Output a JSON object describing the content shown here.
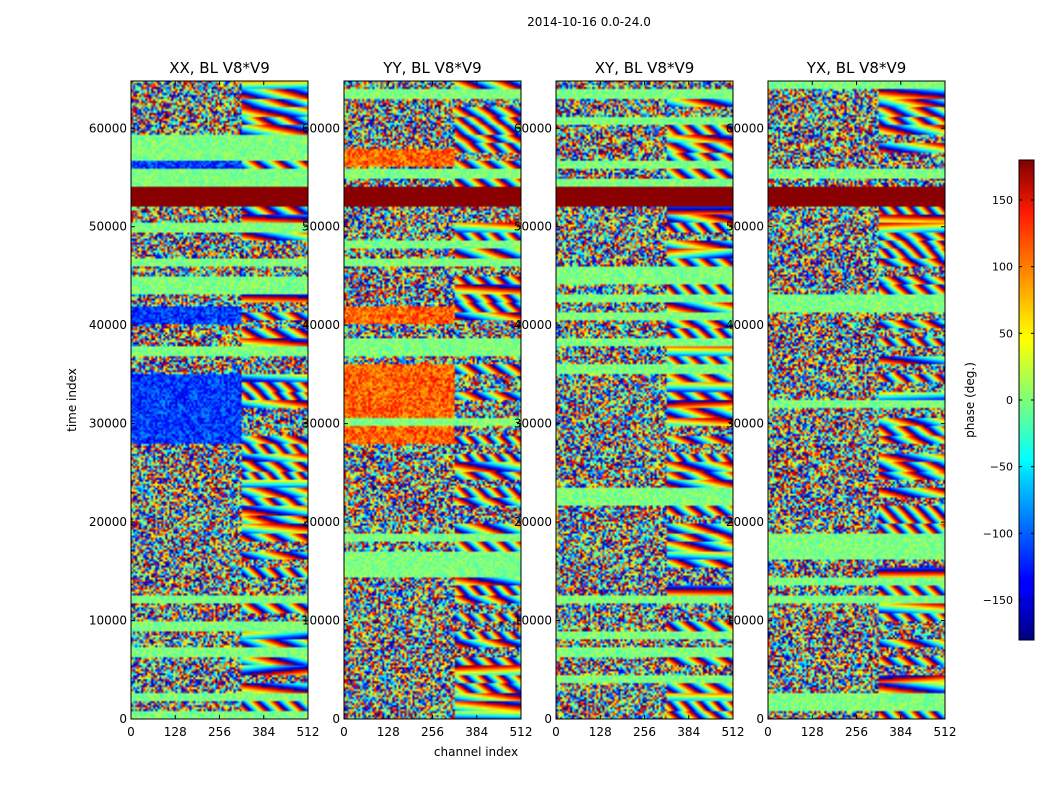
{
  "figure": {
    "suptitle": "2014-10-16 0.0-24.0",
    "xlabel": "channel index",
    "ylabel": "time index"
  },
  "colorbar": {
    "label": "phase (deg.)",
    "range": [
      -180,
      180
    ],
    "ticks": [
      150,
      100,
      50,
      0,
      -50,
      -100,
      -150
    ],
    "tick_labels": [
      "150",
      "100",
      "50",
      "0",
      "−50",
      "−100",
      "−150"
    ],
    "colormap": "jet"
  },
  "chart_data": [
    {
      "type": "heatmap",
      "title": "XX, BL V8*V9",
      "x_range": [
        0,
        512
      ],
      "y_range": [
        0,
        64800
      ],
      "x_ticks": [
        0,
        128,
        256,
        384,
        512
      ],
      "y_ticks": [
        0,
        10000,
        20000,
        30000,
        40000,
        50000,
        60000
      ],
      "value": "phase (deg.)",
      "notes": "saturated +180 band near time 52000-54000; strong blue (about -120) coherent regions in channels 0-320 near 28000-35000 and 40000-42000"
    },
    {
      "type": "heatmap",
      "title": "YY, BL V8*V9",
      "x_range": [
        0,
        512
      ],
      "y_range": [
        0,
        64800
      ],
      "x_ticks": [
        0,
        128,
        256,
        384,
        512
      ],
      "y_ticks": [
        0,
        10000,
        20000,
        30000,
        40000,
        50000,
        60000
      ],
      "value": "phase (deg.)",
      "notes": "saturated +180 band near time 52000-54000; orange (about +80) coherent regions in channels 0-320"
    },
    {
      "type": "heatmap",
      "title": "XY, BL V8*V9",
      "x_range": [
        0,
        512
      ],
      "y_range": [
        0,
        64800
      ],
      "x_ticks": [
        0,
        128,
        256,
        384,
        512
      ],
      "y_ticks": [
        0,
        10000,
        20000,
        30000,
        40000,
        50000,
        60000
      ],
      "value": "phase (deg.)",
      "notes": "saturated +180 band near time 52000-54000; mostly noisy phase"
    },
    {
      "type": "heatmap",
      "title": "YX, BL V8*V9",
      "x_range": [
        0,
        512
      ],
      "y_range": [
        0,
        64800
      ],
      "x_ticks": [
        0,
        128,
        256,
        384,
        512
      ],
      "y_ticks": [
        0,
        10000,
        20000,
        30000,
        40000,
        50000,
        60000
      ],
      "value": "phase (deg.)",
      "notes": "saturated +180 band near time 52000-54000; mostly noisy phase"
    }
  ]
}
